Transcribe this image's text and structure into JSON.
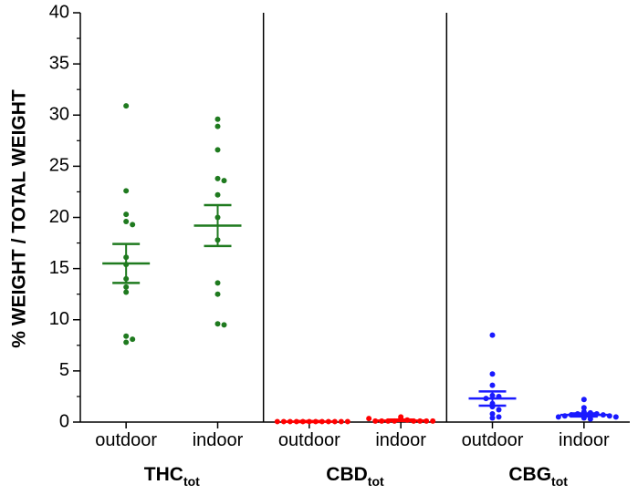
{
  "chart_data": {
    "type": "scatter",
    "ylabel": "% WEIGHT / TOTAL WEIGHT",
    "ylim": [
      0,
      40
    ],
    "y_ticks": [
      "0",
      "5",
      "10",
      "15",
      "20",
      "25",
      "30",
      "35",
      "40"
    ],
    "grid": false,
    "groups": [
      {
        "name": "THC",
        "subscript": "tot",
        "color": "#1f7a1f",
        "categories": [
          {
            "label": "outdoor",
            "mean": 15.5,
            "sem_low": 13.6,
            "sem_high": 17.4,
            "values": [
              30.9,
              22.6,
              20.3,
              19.6,
              19.3,
              16.1,
              15.4,
              14.0,
              13.2,
              12.7,
              8.4,
              8.1,
              7.8
            ]
          },
          {
            "label": "indoor",
            "mean": 19.2,
            "sem_low": 17.2,
            "sem_high": 21.2,
            "values": [
              29.6,
              28.9,
              26.6,
              23.8,
              23.6,
              22.2,
              20.0,
              17.8,
              13.6,
              12.5,
              9.6,
              9.5
            ]
          }
        ]
      },
      {
        "name": "CBD",
        "subscript": "tot",
        "color": "#ff0000",
        "categories": [
          {
            "label": "outdoor",
            "mean": 0.05,
            "sem_low": 0.0,
            "sem_high": 0.1,
            "values": [
              0.05,
              0.05,
              0.05,
              0.05,
              0.05,
              0.05,
              0.05,
              0.05,
              0.05,
              0.05,
              0.05,
              0.05
            ]
          },
          {
            "label": "indoor",
            "mean": 0.15,
            "sem_low": 0.1,
            "sem_high": 0.25,
            "values": [
              0.5,
              0.3,
              0.2,
              0.1,
              0.1,
              0.1,
              0.1,
              0.1,
              0.1,
              0.1,
              0.1,
              0.35
            ]
          }
        ]
      },
      {
        "name": "CBG",
        "subscript": "tot",
        "color": "#1a1aff",
        "categories": [
          {
            "label": "outdoor",
            "mean": 2.3,
            "sem_low": 1.6,
            "sem_high": 3.0,
            "values": [
              8.5,
              4.7,
              3.6,
              2.6,
              2.5,
              2.3,
              1.8,
              1.5,
              1.2,
              0.8,
              0.5,
              0.4
            ]
          },
          {
            "label": "indoor",
            "mean": 0.7,
            "sem_low": 0.55,
            "sem_high": 0.85,
            "values": [
              2.2,
              1.4,
              1.0,
              0.9,
              0.8,
              0.8,
              0.7,
              0.7,
              0.6,
              0.6,
              0.5,
              0.5,
              0.4,
              0.3
            ]
          }
        ]
      }
    ]
  }
}
